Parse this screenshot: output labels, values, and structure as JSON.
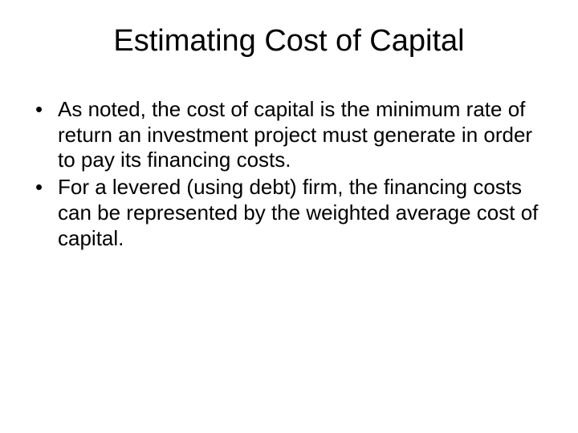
{
  "slide": {
    "title": "Estimating Cost of Capital",
    "bullets": [
      "As noted, the cost of capital is the minimum rate of return an investment project must generate in order to pay its financing costs.",
      "For a levered (using debt) firm, the financing costs can be represented by the weighted average cost of capital."
    ]
  },
  "style": {
    "background_color": "#ffffff",
    "text_color": "#000000",
    "title_fontsize": 38,
    "body_fontsize": 26,
    "font_family": "Arial"
  }
}
